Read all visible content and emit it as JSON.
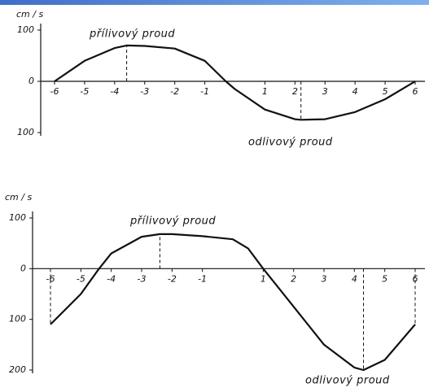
{
  "chart_data": [
    {
      "type": "line",
      "ylabel": "cm / s",
      "x": [
        -6,
        -5,
        -4,
        -3.6,
        -3,
        -2,
        -1,
        -0.3,
        0,
        1,
        2,
        2.2,
        3,
        4,
        5,
        6
      ],
      "series": [
        {
          "color": "#111111",
          "values": [
            0,
            40,
            65,
            70,
            69,
            64,
            40,
            0,
            -15,
            -55,
            -74,
            -75,
            -74,
            -60,
            -35,
            0
          ]
        }
      ],
      "xlim": [
        -6,
        6
      ],
      "xticks": [
        -6,
        -5,
        -4,
        -3,
        -2,
        -1,
        1,
        2,
        3,
        4,
        5,
        6
      ],
      "ylim": [
        -100,
        100
      ],
      "yticks": [
        {
          "value": 100,
          "label": "100"
        },
        0,
        {
          "value": -100,
          "label": "100"
        }
      ],
      "vlines": [
        -3.6,
        2.2
      ],
      "annotations": [
        "přílivový proud",
        "odlivový proud"
      ]
    },
    {
      "type": "line",
      "ylabel": "cm / s",
      "x": [
        -6,
        -5,
        -4.4,
        -4,
        -3,
        -2.4,
        -2,
        -1,
        0,
        0.5,
        1,
        2,
        3,
        4,
        4.3,
        5,
        6
      ],
      "series": [
        {
          "color": "#111111",
          "values": [
            -110,
            -50,
            0,
            30,
            63,
            68,
            68,
            64,
            58,
            40,
            0,
            -75,
            -150,
            -195,
            -200,
            -180,
            -110
          ]
        }
      ],
      "xlim": [
        -6,
        6
      ],
      "xticks": [
        -6,
        -5,
        -4,
        -3,
        -2,
        -1,
        1,
        2,
        3,
        4,
        5,
        6
      ],
      "ylim": [
        -200,
        100
      ],
      "yticks": [
        {
          "value": 100,
          "label": "100"
        },
        0,
        {
          "value": -100,
          "label": "100"
        },
        {
          "value": -200,
          "label": "200"
        }
      ],
      "vlines": [
        -6,
        -2.4,
        4.3,
        6
      ],
      "annotations": [
        "přílivový proud",
        "odlivový proud"
      ]
    }
  ]
}
